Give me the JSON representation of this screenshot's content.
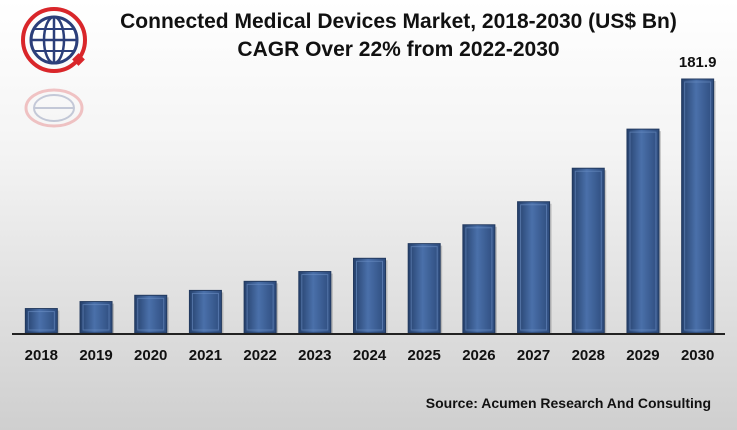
{
  "header": {
    "title": "Connected Medical Devices Market, 2018-2030 (US$ Bn)",
    "subtitle": "CAGR Over 22% from 2022-2030"
  },
  "footer": {
    "source": "Source: Acumen Research And Consulting"
  },
  "logo": {
    "icon": "globe-logo-icon"
  },
  "colors": {
    "bar": "#3a5d95",
    "bar_edge": "#22395e",
    "bar_light": "#6c8fc4",
    "axis": "#222222"
  },
  "chart_data": {
    "type": "bar",
    "title": "Connected Medical Devices Market, 2018-2030 (US$ Bn)",
    "subtitle": "CAGR Over 22% from 2022-2030",
    "categories": [
      "2018",
      "2019",
      "2020",
      "2021",
      "2022",
      "2023",
      "2024",
      "2025",
      "2026",
      "2027",
      "2028",
      "2029",
      "2030"
    ],
    "values": [
      17.5,
      22.5,
      27,
      30.5,
      37,
      44,
      53.5,
      64,
      77.5,
      94,
      118,
      146,
      181.9
    ],
    "data_labels": [
      {
        "index": 12,
        "text": "181.9"
      }
    ],
    "xlabel": "",
    "ylabel": "",
    "ylim": [
      0,
      181.9
    ],
    "grid": false,
    "legend": "none"
  }
}
